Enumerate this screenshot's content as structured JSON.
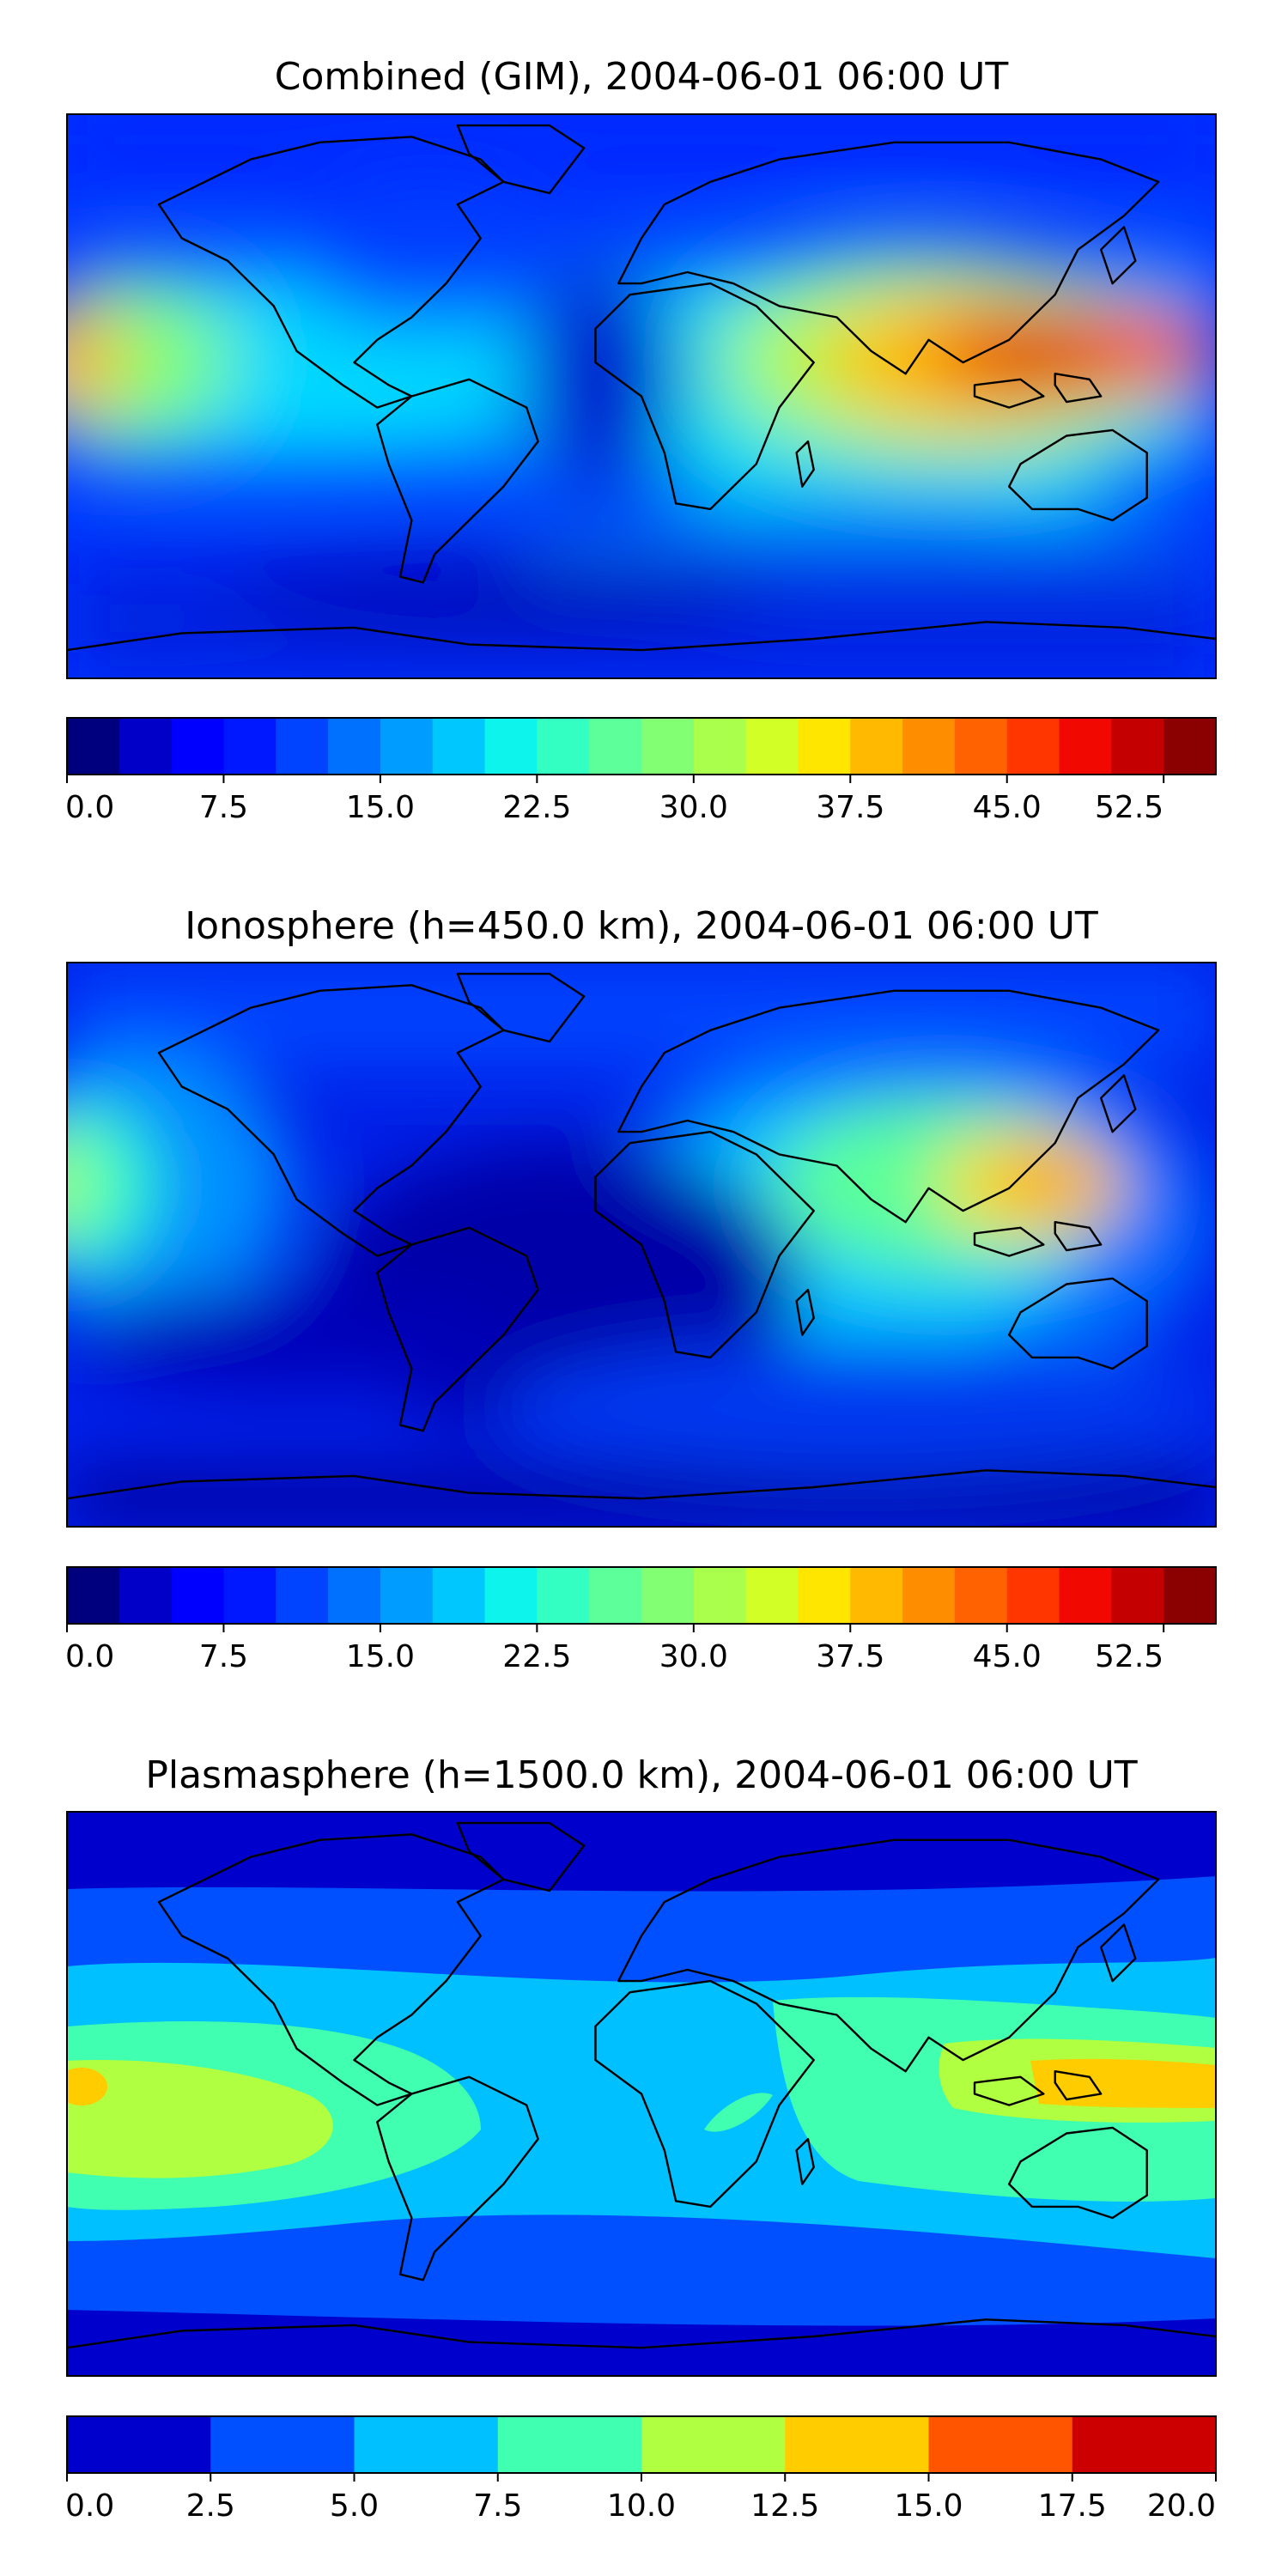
{
  "chart_data": [
    {
      "type": "heatmap",
      "title": "Combined (GIM), 2004-06-01 06:00 UT",
      "colorbar": {
        "ticks": [
          "0.0",
          "7.5",
          "15.0",
          "22.5",
          "30.0",
          "37.5",
          "45.0",
          "52.5"
        ],
        "range": [
          0,
          55
        ],
        "levels": 22,
        "colors": [
          "#00007f",
          "#0000c8",
          "#0000ff",
          "#0018ff",
          "#0044ff",
          "#0070ff",
          "#009cff",
          "#00c8ff",
          "#0cf4eb",
          "#33ffc3",
          "#5cff9a",
          "#83ff73",
          "#aaff4d",
          "#d1ff26",
          "#ffe600",
          "#ffb900",
          "#ff8d00",
          "#ff6200",
          "#ff3600",
          "#f10800",
          "#c40000",
          "#8b0000"
        ]
      },
      "map_features": [
        {
          "lon": -180,
          "lat": 15,
          "value": 42
        },
        {
          "lon": 115,
          "lat": 18,
          "value": 50
        },
        {
          "lon": 80,
          "lat": 15,
          "value": 40
        },
        {
          "lon": 40,
          "lat": 0,
          "value": 28
        },
        {
          "lon": -40,
          "lat": 0,
          "value": 8
        }
      ]
    },
    {
      "type": "heatmap",
      "title": "Ionosphere  (h=450.0 km), 2004-06-01 06:00 UT",
      "colorbar": {
        "ticks": [
          "0.0",
          "7.5",
          "15.0",
          "22.5",
          "30.0",
          "37.5",
          "45.0",
          "52.5"
        ],
        "range": [
          0,
          55
        ],
        "levels": 22,
        "colors": [
          "#00007f",
          "#0000c8",
          "#0000ff",
          "#0018ff",
          "#0044ff",
          "#0070ff",
          "#009cff",
          "#00c8ff",
          "#0cf4eb",
          "#33ffc3",
          "#5cff9a",
          "#83ff73",
          "#aaff4d",
          "#d1ff26",
          "#ffe600",
          "#ffb900",
          "#ff8d00",
          "#ff6200",
          "#ff3600",
          "#f10800",
          "#c40000",
          "#8b0000"
        ]
      },
      "map_features": [
        {
          "lon": -180,
          "lat": 15,
          "value": 28
        },
        {
          "lon": 118,
          "lat": 20,
          "value": 38
        },
        {
          "lon": 45,
          "lat": 0,
          "value": 22
        },
        {
          "lon": -25,
          "lat": -10,
          "value": 3
        }
      ]
    },
    {
      "type": "heatmap",
      "title": "Plasmasphere (h=1500.0 km), 2004-06-01 06:00 UT",
      "colorbar": {
        "ticks": [
          "0.0",
          "2.5",
          "5.0",
          "7.5",
          "10.0",
          "12.5",
          "15.0",
          "17.5",
          "20.0"
        ],
        "range": [
          0,
          20
        ],
        "levels": 8,
        "colors": [
          "#0000cc",
          "#0050ff",
          "#00c0ff",
          "#40ffb0",
          "#b0ff40",
          "#ffcc00",
          "#ff5500",
          "#cc0000"
        ]
      },
      "map_features": [
        {
          "lon": -180,
          "lat": 0,
          "value": 13
        },
        {
          "lon": 135,
          "lat": 0,
          "value": 13
        },
        {
          "lon": -140,
          "lat": -5,
          "value": 11
        },
        {
          "lon": 40,
          "lat": -10,
          "value": 8
        }
      ]
    }
  ]
}
